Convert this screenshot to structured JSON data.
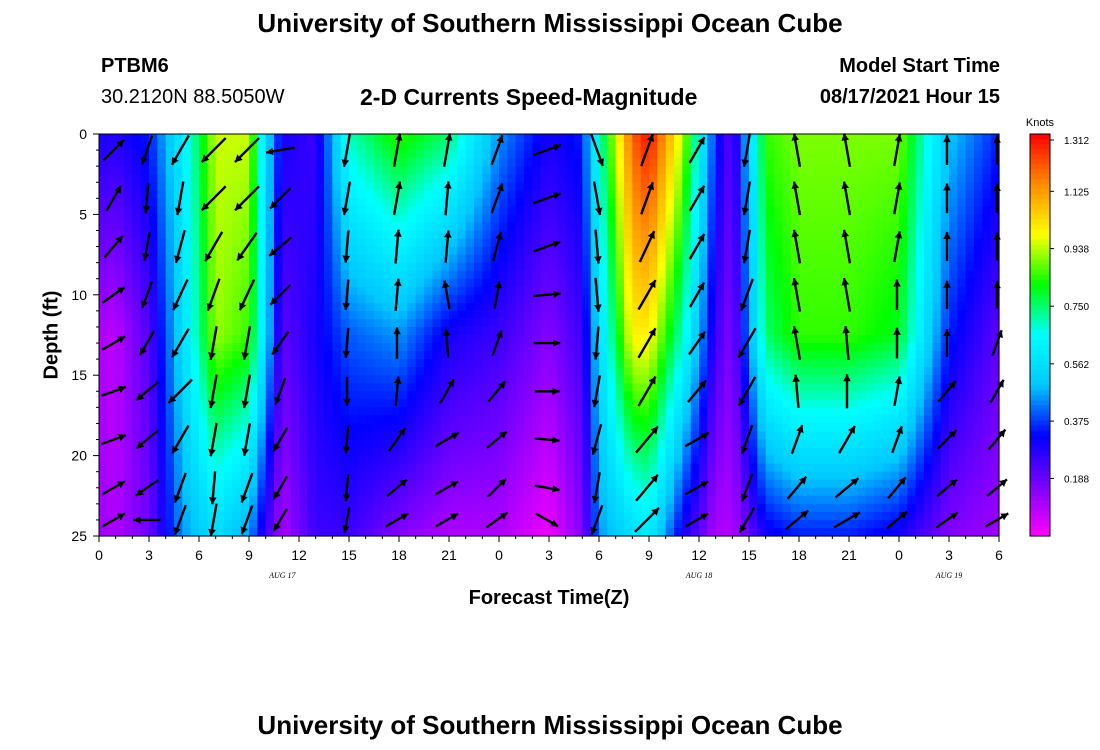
{
  "header": {
    "title": "University of Southern Mississippi Ocean Cube",
    "station_id": "PTBM6",
    "coordinates": "30.2120N  88.5050W",
    "subtitle": "2-D Currents Speed-Magnitude",
    "model_start_label": "Model Start Time",
    "model_start_value": "08/17/2021 Hour 15"
  },
  "footer": {
    "title": "University of Southern Mississippi Ocean Cube"
  },
  "chart_data": {
    "type": "heatmap",
    "title": "2-D Currents Speed-Magnitude",
    "xlabel": "Forecast Time(Z)",
    "ylabel": "Depth (ft)",
    "x_ticks": [
      "0",
      "3",
      "6",
      "9",
      "12",
      "15",
      "18",
      "21",
      "0",
      "3",
      "6",
      "9",
      "12",
      "15",
      "18",
      "21",
      "0",
      "3",
      "6"
    ],
    "date_labels": [
      {
        "label": "AUG  17",
        "tick_index": 11
      },
      {
        "label": "AUG  18",
        "tick_index": 36
      },
      {
        "label": "AUG  19",
        "tick_index": 51
      }
    ],
    "x_range_hours": [
      0,
      54
    ],
    "y_ticks": [
      0,
      5,
      10,
      15,
      20,
      25
    ],
    "ylim": [
      0,
      25
    ],
    "colorbar": {
      "unit": "Knots",
      "min": 0.0,
      "max": 1.312,
      "tick_labels": [
        "1.312",
        "1.125",
        "0.938",
        "0.750",
        "0.562",
        "0.375",
        "0.188"
      ],
      "tick_values": [
        1.312,
        1.125,
        0.938,
        0.75,
        0.562,
        0.375,
        0.188
      ],
      "colors": [
        "#ff00ff",
        "#7a00ff",
        "#0000ff",
        "#00c8ff",
        "#00ffff",
        "#00ff00",
        "#ffff00",
        "#ff8c00",
        "#ff0000"
      ]
    },
    "speed_profile_knots": [
      {
        "hour": 0,
        "surface": 0.3,
        "mid": 0.1,
        "bottom": 0.12
      },
      {
        "hour": 1,
        "surface": 0.28,
        "mid": 0.08,
        "bottom": 0.1
      },
      {
        "hour": 3,
        "surface": 0.35,
        "mid": 0.22,
        "bottom": 0.18
      },
      {
        "hour": 5,
        "surface": 0.6,
        "mid": 0.55,
        "bottom": 0.45
      },
      {
        "hour": 7,
        "surface": 0.95,
        "mid": 0.92,
        "bottom": 0.55
      },
      {
        "hour": 9,
        "surface": 0.95,
        "mid": 0.85,
        "bottom": 0.45
      },
      {
        "hour": 10,
        "surface": 0.55,
        "mid": 0.55,
        "bottom": 0.25
      },
      {
        "hour": 11,
        "surface": 0.3,
        "mid": 0.2,
        "bottom": 0.1
      },
      {
        "hour": 13,
        "surface": 0.25,
        "mid": 0.3,
        "bottom": 0.25
      },
      {
        "hour": 15,
        "surface": 0.7,
        "mid": 0.4,
        "bottom": 0.25
      },
      {
        "hour": 18,
        "surface": 0.85,
        "mid": 0.45,
        "bottom": 0.15
      },
      {
        "hour": 21,
        "surface": 0.75,
        "mid": 0.3,
        "bottom": 0.1
      },
      {
        "hour": 24,
        "surface": 0.45,
        "mid": 0.25,
        "bottom": 0.1
      },
      {
        "hour": 27,
        "surface": 0.3,
        "mid": 0.15,
        "bottom": 0.02
      },
      {
        "hour": 29,
        "surface": 0.35,
        "mid": 0.25,
        "bottom": 0.15
      },
      {
        "hour": 30,
        "surface": 0.7,
        "mid": 0.55,
        "bottom": 0.45
      },
      {
        "hour": 32,
        "surface": 1.2,
        "mid": 1.0,
        "bottom": 0.55
      },
      {
        "hour": 33,
        "surface": 1.3,
        "mid": 1.0,
        "bottom": 0.6
      },
      {
        "hour": 35,
        "surface": 0.95,
        "mid": 0.7,
        "bottom": 0.3
      },
      {
        "hour": 37,
        "surface": 0.35,
        "mid": 0.25,
        "bottom": 0.1
      },
      {
        "hour": 38,
        "surface": 0.2,
        "mid": 0.15,
        "bottom": 0.1
      },
      {
        "hour": 40,
        "surface": 0.85,
        "mid": 0.75,
        "bottom": 0.3
      },
      {
        "hour": 42,
        "surface": 0.9,
        "mid": 0.85,
        "bottom": 0.35
      },
      {
        "hour": 45,
        "surface": 0.9,
        "mid": 0.85,
        "bottom": 0.35
      },
      {
        "hour": 48,
        "surface": 0.9,
        "mid": 0.8,
        "bottom": 0.3
      },
      {
        "hour": 51,
        "surface": 0.5,
        "mid": 0.35,
        "bottom": 0.15
      },
      {
        "hour": 54,
        "surface": 0.35,
        "mid": 0.2,
        "bottom": 0.12
      }
    ],
    "vector_columns_hours": [
      1,
      3,
      5,
      7,
      9,
      11,
      15,
      18,
      21,
      24,
      27,
      30,
      33,
      36,
      39,
      42,
      45,
      48,
      51,
      54
    ],
    "vector_rows_ft": [
      1,
      4,
      7,
      10,
      13,
      16,
      19,
      22,
      24
    ],
    "vector_direction_deg": [
      [
        45,
        200,
        210,
        225,
        225,
        260,
        190,
        10,
        10,
        20,
        70,
        160,
        20,
        30,
        190,
        350,
        350,
        10,
        0,
        0
      ],
      [
        30,
        185,
        190,
        225,
        225,
        225,
        190,
        10,
        5,
        20,
        70,
        170,
        20,
        30,
        190,
        350,
        350,
        10,
        0,
        0
      ],
      [
        40,
        190,
        195,
        210,
        215,
        230,
        185,
        5,
        5,
        15,
        70,
        175,
        25,
        30,
        190,
        350,
        350,
        10,
        0,
        0
      ],
      [
        55,
        200,
        205,
        200,
        205,
        225,
        185,
        5,
        350,
        10,
        85,
        175,
        30,
        30,
        200,
        350,
        350,
        0,
        0,
        0
      ],
      [
        60,
        210,
        210,
        190,
        190,
        215,
        185,
        0,
        355,
        20,
        90,
        185,
        30,
        35,
        210,
        350,
        355,
        0,
        0,
        20
      ],
      [
        70,
        230,
        225,
        190,
        190,
        200,
        180,
        5,
        30,
        40,
        90,
        190,
        30,
        40,
        210,
        355,
        0,
        10,
        40,
        30
      ],
      [
        70,
        230,
        210,
        190,
        190,
        210,
        185,
        35,
        60,
        50,
        95,
        195,
        40,
        60,
        200,
        20,
        30,
        20,
        45,
        40
      ],
      [
        60,
        235,
        200,
        185,
        200,
        210,
        185,
        50,
        60,
        45,
        100,
        190,
        40,
        60,
        200,
        40,
        50,
        40,
        50,
        50
      ],
      [
        60,
        270,
        200,
        190,
        200,
        210,
        190,
        60,
        60,
        55,
        120,
        200,
        45,
        60,
        210,
        50,
        60,
        50,
        55,
        60
      ]
    ],
    "vector_speed_knots": [
      [
        0.3,
        0.4,
        0.7,
        0.95,
        0.95,
        0.3,
        0.7,
        0.85,
        0.75,
        0.45,
        0.3,
        0.7,
        1.3,
        0.35,
        0.85,
        0.9,
        0.9,
        0.5,
        0.35,
        0.3
      ],
      [
        0.3,
        0.35,
        0.7,
        0.95,
        0.95,
        0.3,
        0.6,
        0.8,
        0.7,
        0.45,
        0.3,
        0.7,
        1.25,
        0.3,
        0.85,
        0.9,
        0.9,
        0.5,
        0.35,
        0.3
      ],
      [
        0.25,
        0.3,
        0.65,
        0.95,
        0.9,
        0.3,
        0.5,
        0.7,
        0.5,
        0.35,
        0.25,
        0.65,
        1.15,
        0.3,
        0.85,
        0.88,
        0.88,
        0.45,
        0.3,
        0.25
      ],
      [
        0.2,
        0.25,
        0.6,
        0.92,
        0.85,
        0.25,
        0.4,
        0.5,
        0.3,
        0.25,
        0.2,
        0.6,
        1.0,
        0.25,
        0.8,
        0.85,
        0.85,
        0.4,
        0.25,
        0.2
      ],
      [
        0.15,
        0.25,
        0.55,
        0.9,
        0.8,
        0.25,
        0.35,
        0.45,
        0.3,
        0.2,
        0.15,
        0.55,
        1.0,
        0.25,
        0.7,
        0.75,
        0.8,
        0.4,
        0.25,
        0.2
      ],
      [
        0.12,
        0.25,
        0.55,
        0.8,
        0.7,
        0.25,
        0.3,
        0.35,
        0.25,
        0.15,
        0.05,
        0.5,
        0.9,
        0.25,
        0.55,
        0.55,
        0.6,
        0.35,
        0.2,
        0.15
      ],
      [
        0.12,
        0.22,
        0.5,
        0.7,
        0.55,
        0.2,
        0.25,
        0.25,
        0.2,
        0.12,
        0.05,
        0.45,
        0.75,
        0.2,
        0.4,
        0.4,
        0.45,
        0.25,
        0.15,
        0.12
      ],
      [
        0.12,
        0.2,
        0.45,
        0.55,
        0.45,
        0.15,
        0.2,
        0.15,
        0.12,
        0.1,
        0.08,
        0.45,
        0.6,
        0.12,
        0.3,
        0.3,
        0.35,
        0.2,
        0.15,
        0.12
      ],
      [
        0.12,
        0.18,
        0.45,
        0.55,
        0.4,
        0.1,
        0.15,
        0.12,
        0.1,
        0.1,
        0.1,
        0.45,
        0.6,
        0.1,
        0.3,
        0.3,
        0.35,
        0.15,
        0.12,
        0.12
      ]
    ]
  }
}
